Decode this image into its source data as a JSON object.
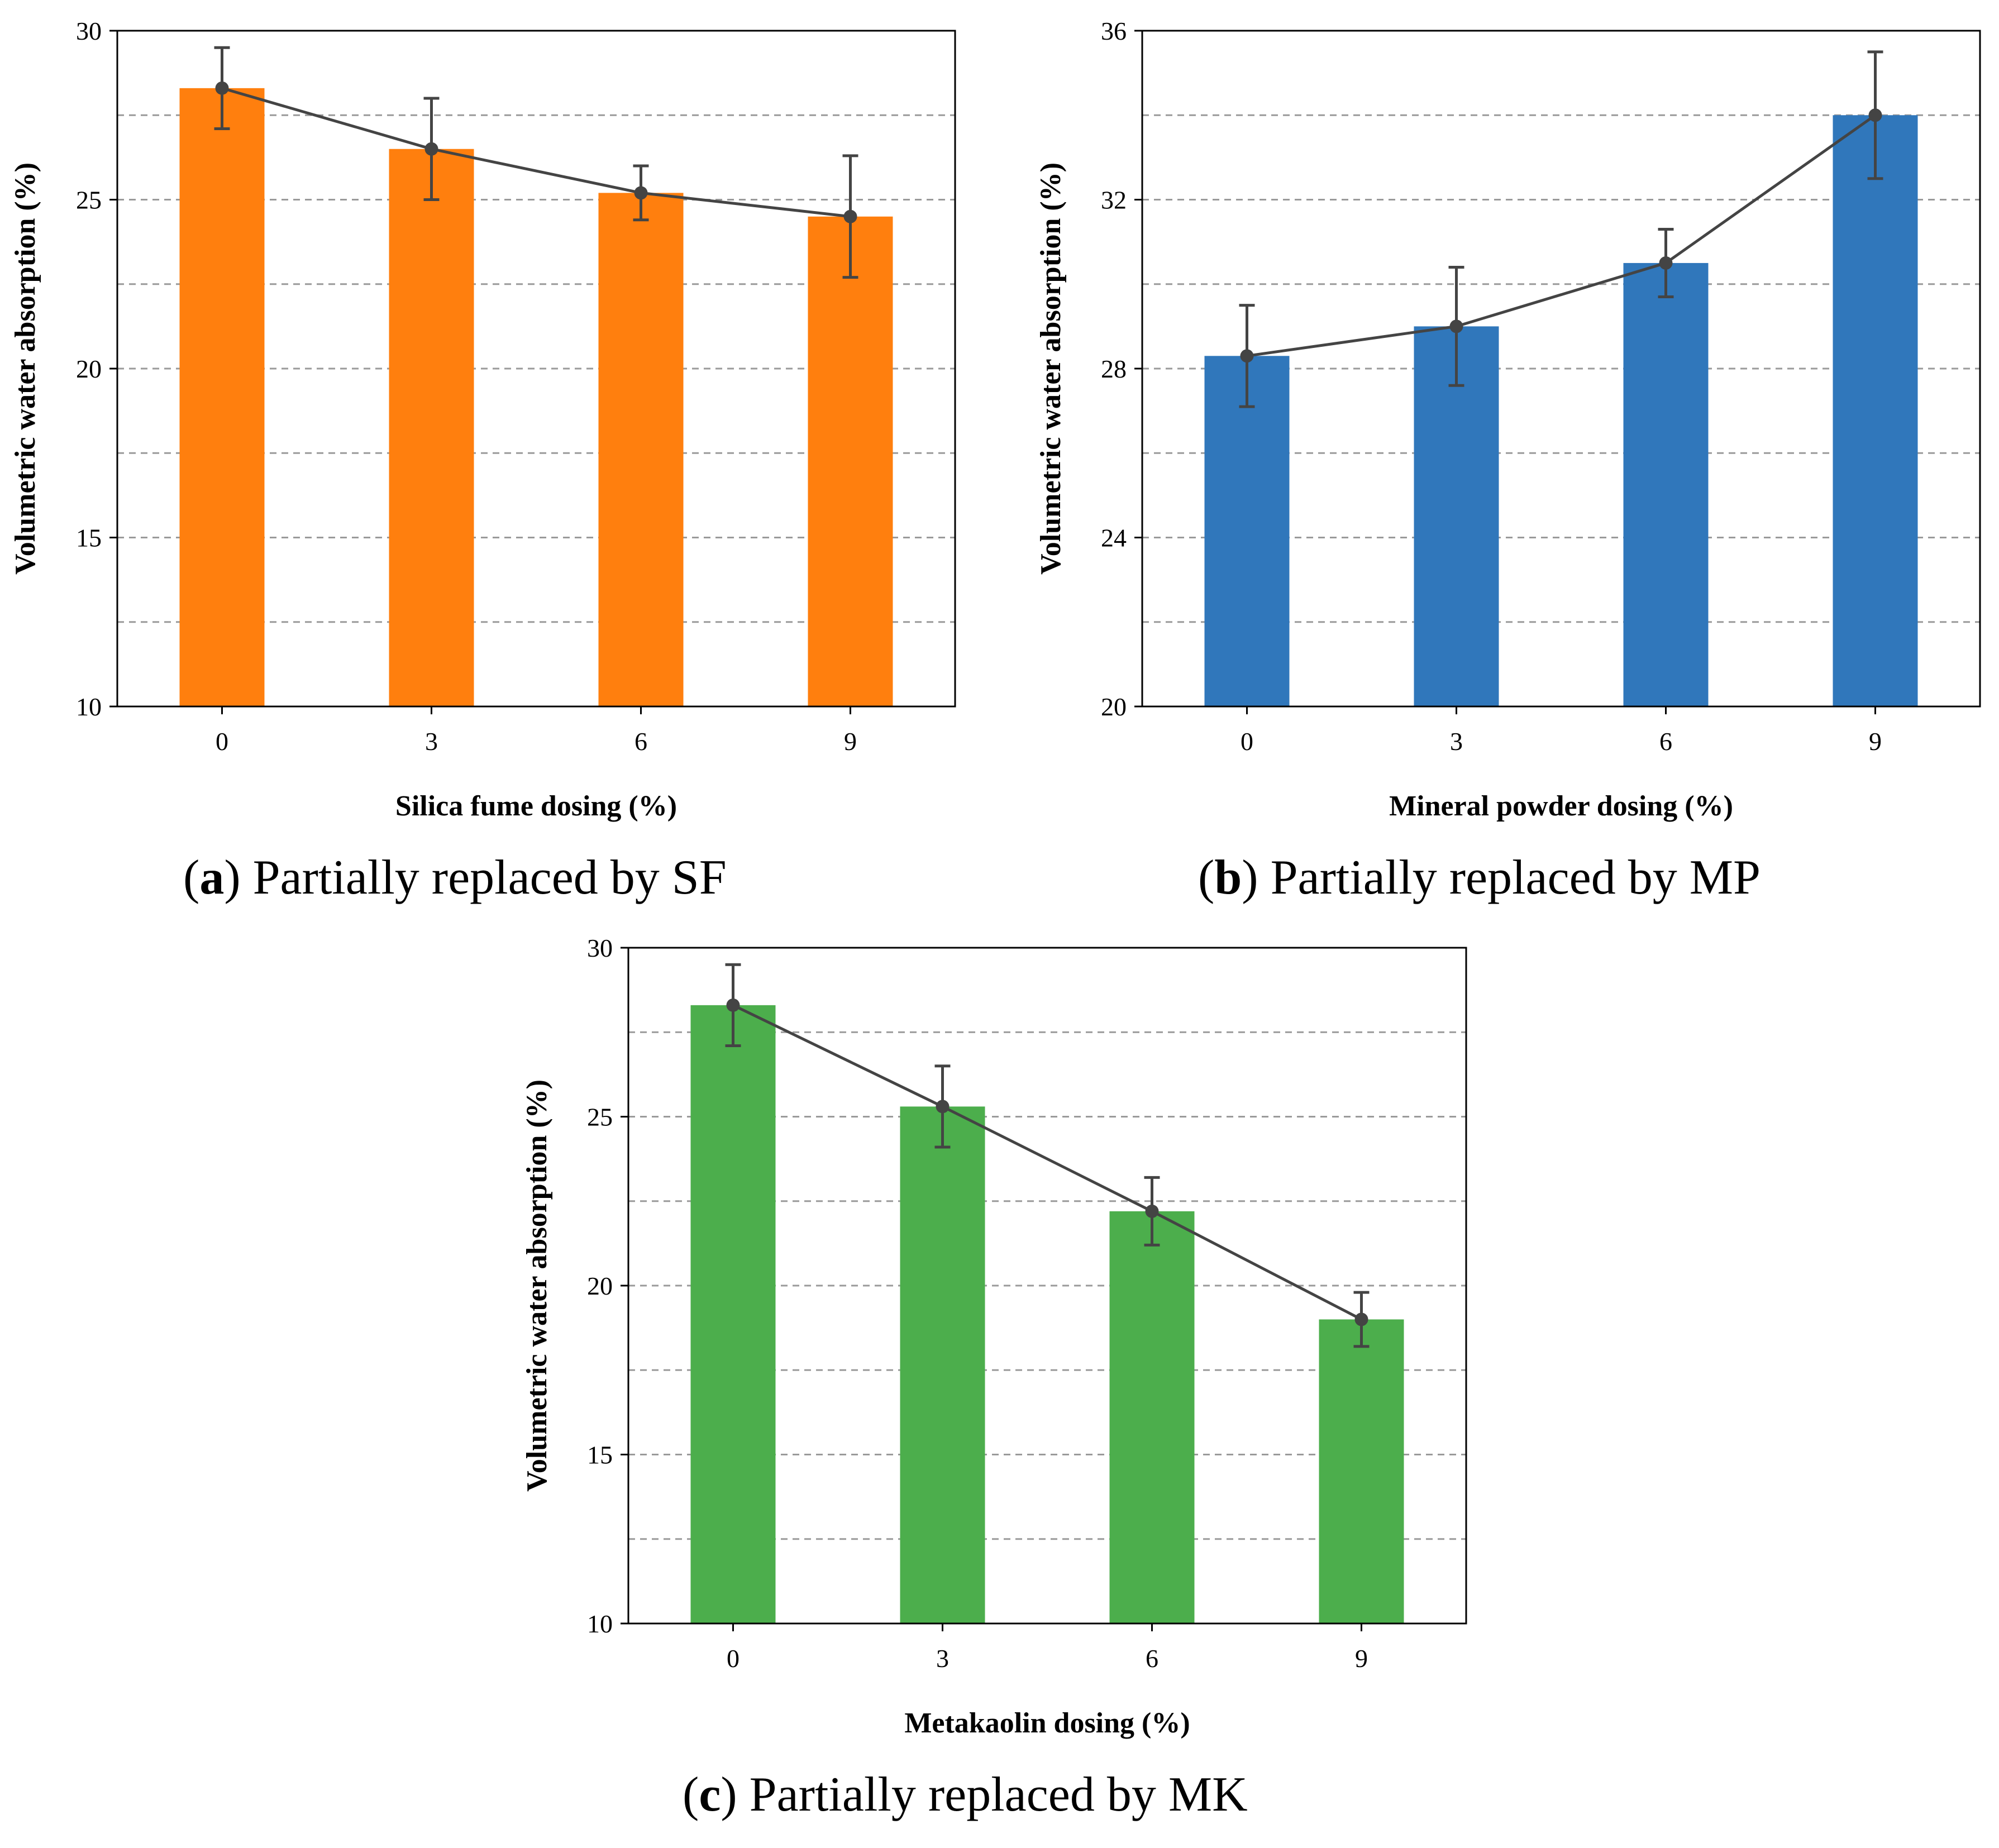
{
  "chart_data": [
    {
      "type": "bar",
      "panel": "a",
      "caption_letter": "a",
      "caption_text": ") Partially replaced by SF",
      "categories": [
        "0",
        "3",
        "6",
        "9"
      ],
      "values": [
        28.3,
        26.5,
        25.2,
        24.5
      ],
      "errors": [
        1.2,
        1.5,
        0.8,
        1.8
      ],
      "xlabel": "Silica fume dosing (%)",
      "ylabel": "Volumetric water absorption (%)",
      "ylim": [
        10,
        30
      ],
      "yticks": [
        "10",
        "15",
        "20",
        "25",
        "30"
      ],
      "ytick_values": [
        10,
        15,
        20,
        25,
        30
      ],
      "grid_values": [
        12.5,
        15,
        17.5,
        20,
        22.5,
        25,
        27.5
      ],
      "bar_color": "#ff7f0e",
      "line_color": "#444444"
    },
    {
      "type": "bar",
      "panel": "b",
      "caption_letter": "b",
      "caption_text": ") Partially replaced by MP",
      "categories": [
        "0",
        "3",
        "6",
        "9"
      ],
      "values": [
        28.3,
        29.0,
        30.5,
        34.0
      ],
      "errors": [
        1.2,
        1.4,
        0.8,
        1.5
      ],
      "xlabel": "Mineral powder dosing (%)",
      "ylabel": "Volumetric water absorption (%)",
      "ylim": [
        20,
        36
      ],
      "yticks": [
        "20",
        "24",
        "28",
        "32",
        "36"
      ],
      "ytick_values": [
        20,
        24,
        28,
        32,
        36
      ],
      "grid_values": [
        22,
        24,
        26,
        28,
        30,
        32,
        34
      ],
      "bar_color": "#3077bb",
      "line_color": "#444444"
    },
    {
      "type": "bar",
      "panel": "c",
      "caption_letter": "c",
      "caption_text": ") Partially replaced by MK",
      "categories": [
        "0",
        "3",
        "6",
        "9"
      ],
      "values": [
        28.3,
        25.3,
        22.2,
        19.0
      ],
      "errors": [
        1.2,
        1.2,
        1.0,
        0.8
      ],
      "xlabel": "Metakaolin dosing (%)",
      "ylabel": "Volumetric water absorption (%)",
      "ylim": [
        10,
        30
      ],
      "yticks": [
        "10",
        "15",
        "20",
        "25",
        "30"
      ],
      "ytick_values": [
        10,
        15,
        20,
        25,
        30
      ],
      "grid_values": [
        12.5,
        15,
        17.5,
        20,
        22.5,
        25,
        27.5
      ],
      "bar_color": "#4cae4c",
      "line_color": "#444444"
    }
  ]
}
